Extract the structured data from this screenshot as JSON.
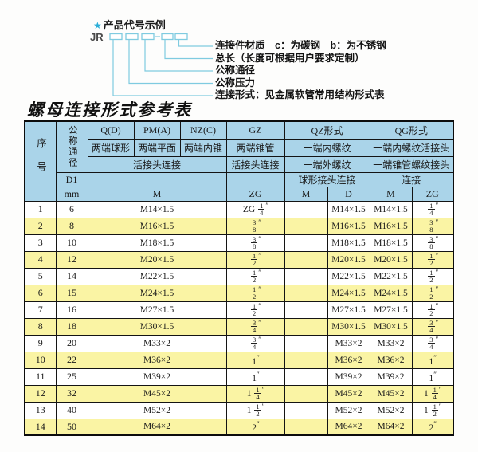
{
  "diagram": {
    "star": "★",
    "title": "产品代号示例",
    "prefix": "JR",
    "labels": [
      "连接件材质　c：为碳钢　b：为不锈钢",
      "总长（长度可根据用户要求定制）",
      "公称通径",
      "公称压力",
      "连接形式：见金属软管常用结构形式表"
    ]
  },
  "colors": {
    "header_bg": "#aad4e9",
    "row_alt_bg": "#faf4a4",
    "diagram_line": "#7fcbe0",
    "star_blue": "#2aaed8"
  },
  "table": {
    "title": "螺母连接形式参考表",
    "header": {
      "seq": "序号",
      "dn": "公称通径",
      "d1": "D1",
      "mm": "mm",
      "q_code": "Q(D)",
      "q_desc": "两端球形",
      "pm_code": "PM(A)",
      "pm_desc": "两端平面",
      "nz_code": "NZ(C)",
      "nz_desc": "两端内锥",
      "qpn_row3": "活接头连接",
      "qpn_unit": "M",
      "gz_code": "GZ",
      "gz_desc": "两端锥管",
      "gz_row3": "活接头连接",
      "gz_unit": "ZG",
      "qz_code": "QZ形式",
      "qz_row2": "一端内螺纹",
      "qz_row3": "一端外螺纹",
      "qz_row4": "球形接头连接",
      "qz_unit_m": "M",
      "qz_unit_d": "D",
      "qg_code": "QG形式",
      "qg_row2": "一端内螺纹活接头",
      "qg_row3": "一端锥管螺纹接头",
      "qg_row4": "连接",
      "qg_unit_m": "M",
      "qg_unit_zg": "ZG"
    },
    "rows": [
      {
        "seq": "1",
        "dn": "6",
        "m": "M14×1.5",
        "zg": "ZG 1/4\"",
        "qz_m": "",
        "qz_d": "M14×1.5",
        "qg_m": "M14×1.5",
        "qg_zg": "1/4\""
      },
      {
        "seq": "2",
        "dn": "8",
        "m": "M16×1.5",
        "zg": "3/8\"",
        "qz_m": "",
        "qz_d": "M16×1.5",
        "qg_m": "M16×1.5",
        "qg_zg": "3/8\""
      },
      {
        "seq": "3",
        "dn": "10",
        "m": "M18×1.5",
        "zg": "3/8\"",
        "qz_m": "",
        "qz_d": "M18×1.5",
        "qg_m": "M18×1.5",
        "qg_zg": "3/8\""
      },
      {
        "seq": "4",
        "dn": "12",
        "m": "M20×1.5",
        "zg": "1/2\"",
        "qz_m": "",
        "qz_d": "M20×1.5",
        "qg_m": "M20×1.5",
        "qg_zg": "1/2\""
      },
      {
        "seq": "5",
        "dn": "14",
        "m": "M22×1.5",
        "zg": "1/2\"",
        "qz_m": "",
        "qz_d": "M22×1.5",
        "qg_m": "M22×1.5",
        "qg_zg": "1/2\""
      },
      {
        "seq": "6",
        "dn": "15",
        "m": "M24×1.5",
        "zg": "1/2\"",
        "qz_m": "",
        "qz_d": "M24×1.5",
        "qg_m": "M24×1.5",
        "qg_zg": "1/2\""
      },
      {
        "seq": "7",
        "dn": "16",
        "m": "M27×1.5",
        "zg": "1/2\"",
        "qz_m": "",
        "qz_d": "M27×1.5",
        "qg_m": "M27×1.5",
        "qg_zg": "1/2\""
      },
      {
        "seq": "8",
        "dn": "18",
        "m": "M30×1.5",
        "zg": "3/4\"",
        "qz_m": "",
        "qz_d": "M30×1.5",
        "qg_m": "M30×1.5",
        "qg_zg": "3/4\""
      },
      {
        "seq": "9",
        "dn": "20",
        "m": "M33×2",
        "zg": "3/4\"",
        "qz_m": "",
        "qz_d": "M33×2",
        "qg_m": "M33×2",
        "qg_zg": "3/4\""
      },
      {
        "seq": "10",
        "dn": "22",
        "m": "M36×2",
        "zg": "1\"",
        "qz_m": "",
        "qz_d": "M36×2",
        "qg_m": "M36×2",
        "qg_zg": "1\""
      },
      {
        "seq": "11",
        "dn": "25",
        "m": "M39×2",
        "zg": "1\"",
        "qz_m": "",
        "qz_d": "M39×2",
        "qg_m": "M39×2",
        "qg_zg": "1\""
      },
      {
        "seq": "12",
        "dn": "32",
        "m": "M45×2",
        "zg": "1 1/4\"",
        "qz_m": "",
        "qz_d": "M45×2",
        "qg_m": "M45×2",
        "qg_zg": "1 1/4\""
      },
      {
        "seq": "13",
        "dn": "40",
        "m": "M52×2",
        "zg": "1 1/2\"",
        "qz_m": "",
        "qz_d": "M52×2",
        "qg_m": "M52×2",
        "qg_zg": "1 1/2\""
      },
      {
        "seq": "14",
        "dn": "50",
        "m": "M64×2",
        "zg": "2\"",
        "qz_m": "",
        "qz_d": "M64×2",
        "qg_m": "M64×2",
        "qg_zg": "2\""
      }
    ]
  }
}
